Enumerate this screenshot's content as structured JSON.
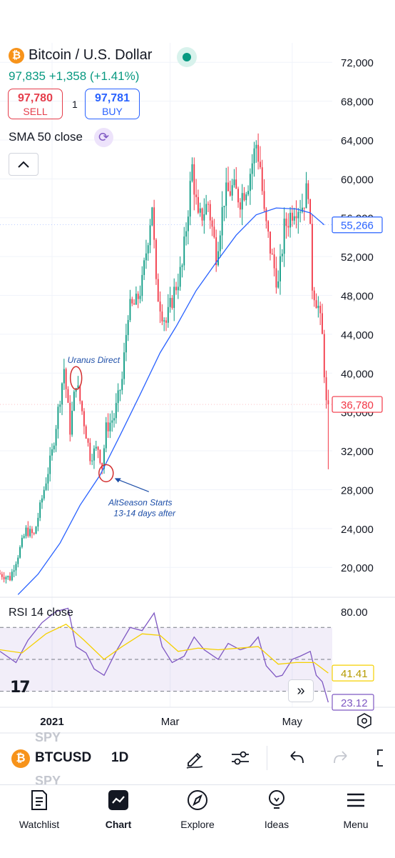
{
  "header": {
    "symbol_name": "Bitcoin / U.S. Dollar",
    "logo_glyph": "₿",
    "last_price": "97,835",
    "change": "+1,358",
    "change_pct": "(+1.41%)",
    "sell_price": "97,780",
    "sell_label": "SELL",
    "buy_price": "97,781",
    "buy_label": "BUY",
    "quantity": "1",
    "indicator_label": "SMA 50 close",
    "status_color": "#089981"
  },
  "chart_data": [
    {
      "type": "candlestick",
      "title": "Bitcoin / U.S. Dollar",
      "period": "1D",
      "y_ticks": [
        "72,000",
        "68,000",
        "64,000",
        "60,000",
        "56,000",
        "52,000",
        "48,000",
        "44,000",
        "40,000",
        "36,000",
        "32,000",
        "28,000",
        "24,000",
        "20,000"
      ],
      "ylim": [
        17000,
        74000
      ],
      "x_ticks": [
        {
          "label": "2021",
          "date": "2021-01-01"
        },
        {
          "label": "Mar",
          "date": "2021-03-01"
        },
        {
          "label": "May",
          "date": "2021-05-01"
        }
      ],
      "xlim": [
        "2020-12-06",
        "2021-05-21"
      ],
      "up_color": "#089981",
      "down_color": "#f23645",
      "price_path": [
        [
          "2020-12-06",
          19400
        ],
        [
          "2020-12-12",
          18900
        ],
        [
          "2020-12-16",
          21300
        ],
        [
          "2020-12-20",
          23800
        ],
        [
          "2020-12-24",
          23300
        ],
        [
          "2020-12-28",
          27100
        ],
        [
          "2021-01-02",
          31800
        ],
        [
          "2021-01-08",
          40500
        ],
        [
          "2021-01-11",
          34200
        ],
        [
          "2021-01-14",
          39200
        ],
        [
          "2021-01-17",
          36100
        ],
        [
          "2021-01-21",
          31500
        ],
        [
          "2021-01-25",
          32300
        ],
        [
          "2021-01-27",
          30400
        ],
        [
          "2021-01-29",
          34300
        ],
        [
          "2021-02-02",
          35500
        ],
        [
          "2021-02-06",
          39300
        ],
        [
          "2021-02-09",
          46400
        ],
        [
          "2021-02-13",
          47200
        ],
        [
          "2021-02-16",
          49200
        ],
        [
          "2021-02-21",
          57500
        ],
        [
          "2021-02-23",
          48800
        ],
        [
          "2021-02-26",
          46300
        ],
        [
          "2021-02-28",
          45200
        ],
        [
          "2021-03-04",
          48400
        ],
        [
          "2021-03-08",
          50900
        ],
        [
          "2021-03-13",
          61200
        ],
        [
          "2021-03-16",
          55600
        ],
        [
          "2021-03-21",
          57500
        ],
        [
          "2021-03-25",
          52300
        ],
        [
          "2021-03-29",
          58100
        ],
        [
          "2021-04-02",
          59000
        ],
        [
          "2021-04-06",
          58000
        ],
        [
          "2021-04-10",
          59800
        ],
        [
          "2021-04-14",
          63600
        ],
        [
          "2021-04-16",
          61300
        ],
        [
          "2021-04-18",
          56200
        ],
        [
          "2021-04-22",
          51700
        ],
        [
          "2021-04-25",
          49000
        ],
        [
          "2021-04-28",
          54900
        ],
        [
          "2021-05-03",
          57200
        ],
        [
          "2021-05-07",
          57300
        ],
        [
          "2021-05-10",
          59200
        ],
        [
          "2021-05-12",
          49100
        ],
        [
          "2021-05-15",
          46800
        ],
        [
          "2021-05-17",
          43700
        ],
        [
          "2021-05-19",
          36780
        ]
      ],
      "sma_label": "SMA 50 close",
      "sma_color": "#2962ff",
      "sma_path": [
        [
          "2020-12-15",
          17200
        ],
        [
          "2020-12-25",
          19300
        ],
        [
          "2021-01-05",
          22500
        ],
        [
          "2021-01-15",
          26400
        ],
        [
          "2021-01-25",
          29500
        ],
        [
          "2021-02-04",
          33600
        ],
        [
          "2021-02-14",
          37800
        ],
        [
          "2021-02-24",
          42100
        ],
        [
          "2021-03-04",
          44800
        ],
        [
          "2021-03-14",
          48500
        ],
        [
          "2021-03-24",
          51400
        ],
        [
          "2021-04-03",
          54200
        ],
        [
          "2021-04-13",
          56300
        ],
        [
          "2021-04-23",
          57000
        ],
        [
          "2021-05-03",
          56900
        ],
        [
          "2021-05-10",
          56500
        ],
        [
          "2021-05-17",
          55266
        ]
      ],
      "price_labels": [
        {
          "value": 55266,
          "text": "55,266",
          "color": "#2962ff"
        },
        {
          "value": 36780,
          "text": "36,780",
          "color": "#f23645"
        }
      ],
      "annotations": [
        {
          "text": "Uranus Direct",
          "date": "2021-01-13",
          "value": 39500
        },
        {
          "text": "AltSeason Starts",
          "date": "2021-01-28",
          "value": 29700
        },
        {
          "text": "13-14 days after",
          "date": "2021-01-28",
          "value": 29700
        }
      ]
    },
    {
      "type": "line",
      "title": "RSI 14 close",
      "y_ticks": [
        "80.00",
        "41.41",
        "23.12"
      ],
      "bands": [
        30,
        50,
        70
      ],
      "ylim": [
        20,
        88
      ],
      "series": [
        {
          "color": "#7e57c2",
          "current": 23.12,
          "path": [
            [
              "2020-12-06",
              55
            ],
            [
              "2020-12-14",
              48
            ],
            [
              "2020-12-20",
              62
            ],
            [
              "2020-12-27",
              73
            ],
            [
              "2021-01-03",
              80
            ],
            [
              "2021-01-09",
              82
            ],
            [
              "2021-01-13",
              58
            ],
            [
              "2021-01-18",
              54
            ],
            [
              "2021-01-22",
              44
            ],
            [
              "2021-01-27",
              40
            ],
            [
              "2021-02-02",
              55
            ],
            [
              "2021-02-09",
              70
            ],
            [
              "2021-02-15",
              68
            ],
            [
              "2021-02-21",
              79
            ],
            [
              "2021-02-25",
              58
            ],
            [
              "2021-03-02",
              48
            ],
            [
              "2021-03-08",
              52
            ],
            [
              "2021-03-13",
              64
            ],
            [
              "2021-03-18",
              56
            ],
            [
              "2021-03-25",
              50
            ],
            [
              "2021-03-30",
              60
            ],
            [
              "2021-04-05",
              56
            ],
            [
              "2021-04-10",
              58
            ],
            [
              "2021-04-14",
              64
            ],
            [
              "2021-04-18",
              46
            ],
            [
              "2021-04-23",
              39
            ],
            [
              "2021-04-26",
              40
            ],
            [
              "2021-05-01",
              50
            ],
            [
              "2021-05-05",
              52
            ],
            [
              "2021-05-10",
              55
            ],
            [
              "2021-05-13",
              40
            ],
            [
              "2021-05-16",
              36
            ],
            [
              "2021-05-19",
              23.12
            ]
          ]
        },
        {
          "color": "#f5d000",
          "current": 41.41,
          "path": [
            [
              "2020-12-06",
              56
            ],
            [
              "2020-12-17",
              54
            ],
            [
              "2020-12-29",
              66
            ],
            [
              "2021-01-08",
              72
            ],
            [
              "2021-01-17",
              62
            ],
            [
              "2021-01-27",
              50
            ],
            [
              "2021-02-05",
              58
            ],
            [
              "2021-02-15",
              66
            ],
            [
              "2021-02-24",
              65
            ],
            [
              "2021-03-05",
              55
            ],
            [
              "2021-03-15",
              57
            ],
            [
              "2021-03-25",
              56
            ],
            [
              "2021-04-04",
              57
            ],
            [
              "2021-04-14",
              58
            ],
            [
              "2021-04-24",
              47
            ],
            [
              "2021-05-03",
              48
            ],
            [
              "2021-05-12",
              48
            ],
            [
              "2021-05-19",
              41.41
            ]
          ]
        }
      ]
    }
  ],
  "rsi": {
    "label": "RSI 14 close",
    "logo_text": "17"
  },
  "toolbar": {
    "logo_glyph": "₿",
    "symbol": "BTCUSD",
    "ghost_symbol": "SPY",
    "interval": "1D"
  },
  "tabs": [
    {
      "label": "Watchlist"
    },
    {
      "label": "Chart"
    },
    {
      "label": "Explore"
    },
    {
      "label": "Ideas"
    },
    {
      "label": "Menu"
    }
  ]
}
